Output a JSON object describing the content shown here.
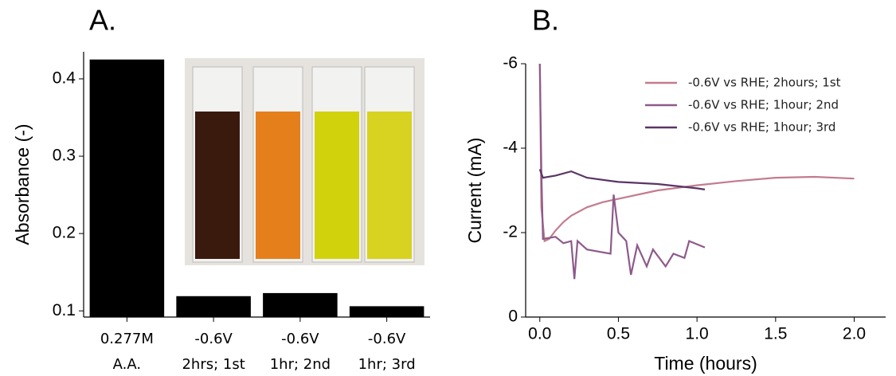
{
  "chart_data": [
    {
      "type": "bar",
      "title": "A.",
      "ylabel": "Absorbance (-)",
      "categories": [
        [
          "0.277M",
          "A.A."
        ],
        [
          "-0.6V",
          "2hrs; 1st"
        ],
        [
          "-0.6V",
          "1hr; 2nd"
        ],
        [
          "-0.6V",
          "1hr; 3rd"
        ]
      ],
      "values": [
        0.425,
        0.119,
        0.123,
        0.106
      ],
      "color": "#000000",
      "ylim": [
        0.092,
        0.435
      ],
      "yticks": [
        0.1,
        0.2,
        0.3,
        0.4
      ],
      "grid": false
    },
    {
      "type": "line",
      "title": "B.",
      "xlabel": "Time (hours)",
      "ylabel": "Current (mA)",
      "xlim": [
        -0.09,
        2.2
      ],
      "xticks": [
        {
          "value": 0,
          "label": "0.0"
        },
        0.5,
        {
          "value": 1,
          "label": "1.0"
        },
        1.5,
        {
          "value": 2,
          "label": "2.0"
        }
      ],
      "ylim": [
        0,
        -6
      ],
      "yticks": [
        -6,
        -4,
        -2,
        0
      ],
      "grid": false,
      "legend": "upper right",
      "series": [
        {
          "name": "-0.6V vs RHE; 2hours; 1st",
          "color": "#c27c8e",
          "x": [
            0,
            0.01,
            0.03,
            0.06,
            0.1,
            0.15,
            0.2,
            0.3,
            0.4,
            0.5,
            0.75,
            1.0,
            1.25,
            1.5,
            1.75,
            2.0
          ],
          "values": [
            -6,
            -2.6,
            -1.8,
            -1.85,
            -2.05,
            -2.25,
            -2.4,
            -2.6,
            -2.72,
            -2.8,
            -3.0,
            -3.12,
            -3.22,
            -3.3,
            -3.32,
            -3.28
          ]
        },
        {
          "name": "-0.6V vs RHE; 1hour; 2nd",
          "color": "#8e5a8a",
          "x": [
            0,
            0.01,
            0.02,
            0.1,
            0.15,
            0.2,
            0.22,
            0.24,
            0.3,
            0.45,
            0.47,
            0.5,
            0.55,
            0.58,
            0.62,
            0.68,
            0.72,
            0.8,
            0.85,
            0.92,
            0.95,
            1.05
          ],
          "values": [
            -6,
            -3.5,
            -1.85,
            -1.9,
            -1.75,
            -1.8,
            -0.9,
            -1.8,
            -1.6,
            -1.5,
            -2.9,
            -2.0,
            -1.8,
            -1.0,
            -1.7,
            -1.2,
            -1.6,
            -1.2,
            -1.5,
            -1.4,
            -1.8,
            -1.65
          ]
        },
        {
          "name": "-0.6V vs RHE; 1hour; 3rd",
          "color": "#5a3566",
          "x": [
            0,
            0.02,
            0.1,
            0.2,
            0.3,
            0.5,
            0.75,
            1.0,
            1.05
          ],
          "values": [
            -3.5,
            -3.3,
            -3.35,
            -3.45,
            -3.3,
            -3.2,
            -3.15,
            -3.05,
            -3.02
          ]
        }
      ]
    }
  ]
}
